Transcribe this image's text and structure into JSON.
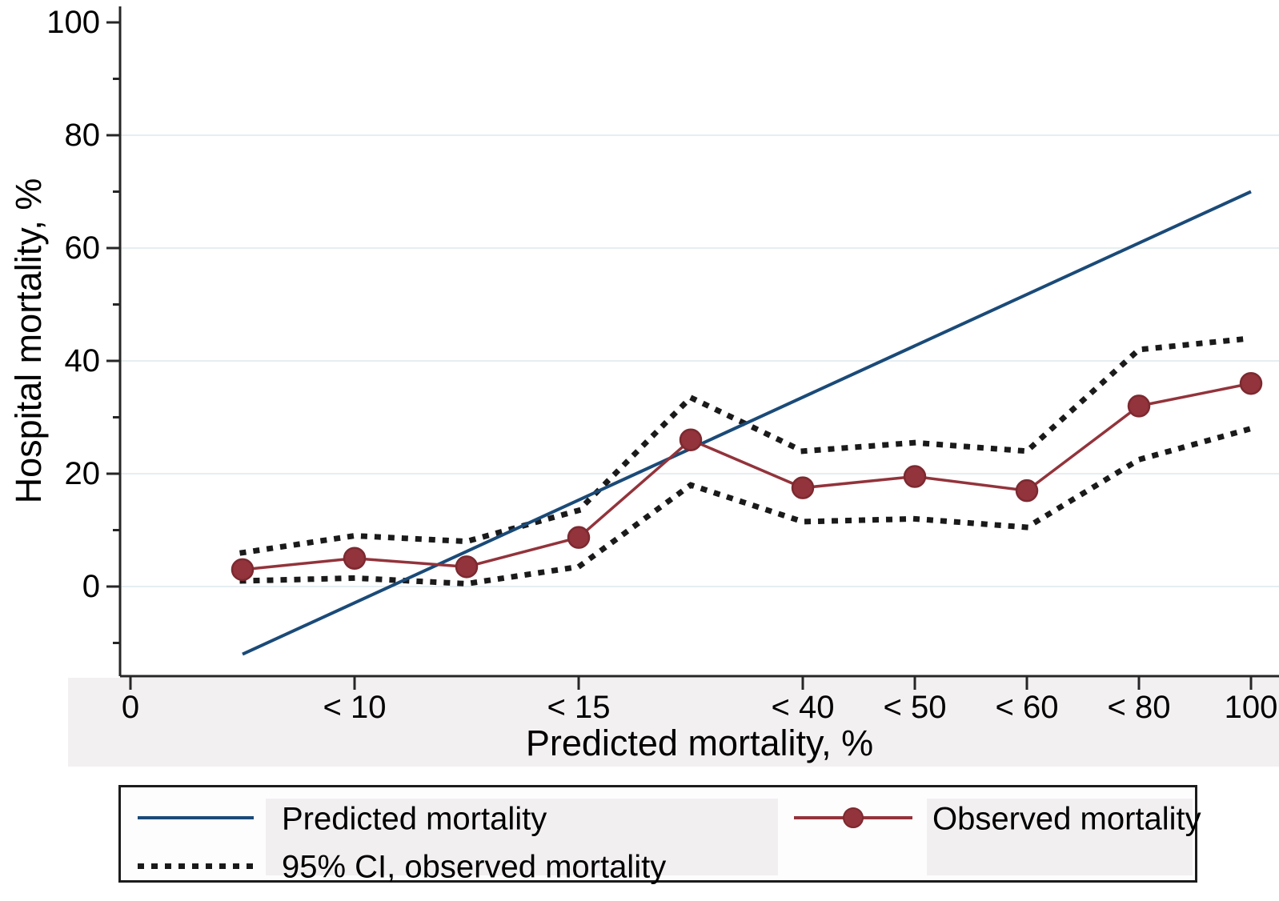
{
  "chart_data": {
    "type": "line",
    "title": "",
    "xlabel": "Predicted mortality, %",
    "ylabel": "Hospital mortality, %",
    "x_axis": {
      "tick_labels": [
        "0",
        "< 10",
        "< 15",
        "< 40",
        "< 50",
        "< 60",
        "< 80",
        "100"
      ],
      "tick_slots": [
        0,
        2,
        4,
        6,
        7,
        8,
        9,
        10
      ],
      "note": "categorical predicted-mortality bins; data points occupy slots 1-10"
    },
    "y_axis": {
      "tick_values": [
        0,
        20,
        40,
        60,
        80,
        100
      ],
      "minor_tick_values": [
        -10,
        10,
        30,
        50,
        70,
        90
      ],
      "gridline_values": [
        0,
        20,
        40,
        60,
        80
      ],
      "range": [
        -15,
        103
      ]
    },
    "series": [
      {
        "name": "95% CI upper bound, observed mortality",
        "style": "dotted",
        "color": "#1a1a1a",
        "x_slots": [
          1,
          2,
          3,
          4,
          5,
          6,
          7,
          8,
          9,
          10
        ],
        "values": [
          6,
          9,
          8,
          13.5,
          33.5,
          24,
          25.5,
          24,
          42,
          44
        ]
      },
      {
        "name": "95% CI lower bound, observed mortality",
        "style": "dotted",
        "color": "#1a1a1a",
        "x_slots": [
          1,
          2,
          3,
          4,
          5,
          6,
          7,
          8,
          9,
          10
        ],
        "values": [
          1,
          1.5,
          0.5,
          3.5,
          18,
          11.5,
          12,
          10.5,
          22.5,
          28
        ]
      },
      {
        "name": "Predicted mortality",
        "style": "solid",
        "color": "#1a4a78",
        "x_slots": [
          1,
          10
        ],
        "values": [
          -12,
          70
        ]
      },
      {
        "name": "Observed mortality",
        "style": "marker-line",
        "color": "#93333b",
        "marker_edge": "#7c2930",
        "x_slots": [
          1,
          2,
          3,
          4,
          5,
          6,
          7,
          8,
          9,
          10
        ],
        "values": [
          3,
          5,
          3.5,
          8.7,
          26,
          17.5,
          19.5,
          17,
          32,
          36
        ]
      }
    ],
    "legend": {
      "position": "bottom",
      "entries": [
        {
          "label": "Predicted mortality",
          "swatch": "solid-blue-line"
        },
        {
          "label": "95% CI, observed mortality",
          "swatch": "dotted-black-line"
        },
        {
          "label": "Observed mortality",
          "swatch": "red-line-with-marker"
        }
      ]
    },
    "colors": {
      "predicted_line": "#1a4a78",
      "observed_line": "#93333b",
      "ci_line": "#1a1a1a",
      "gridline": "#e6eef1",
      "axis": "#262626",
      "label_strip": "#f3f0f2"
    }
  }
}
